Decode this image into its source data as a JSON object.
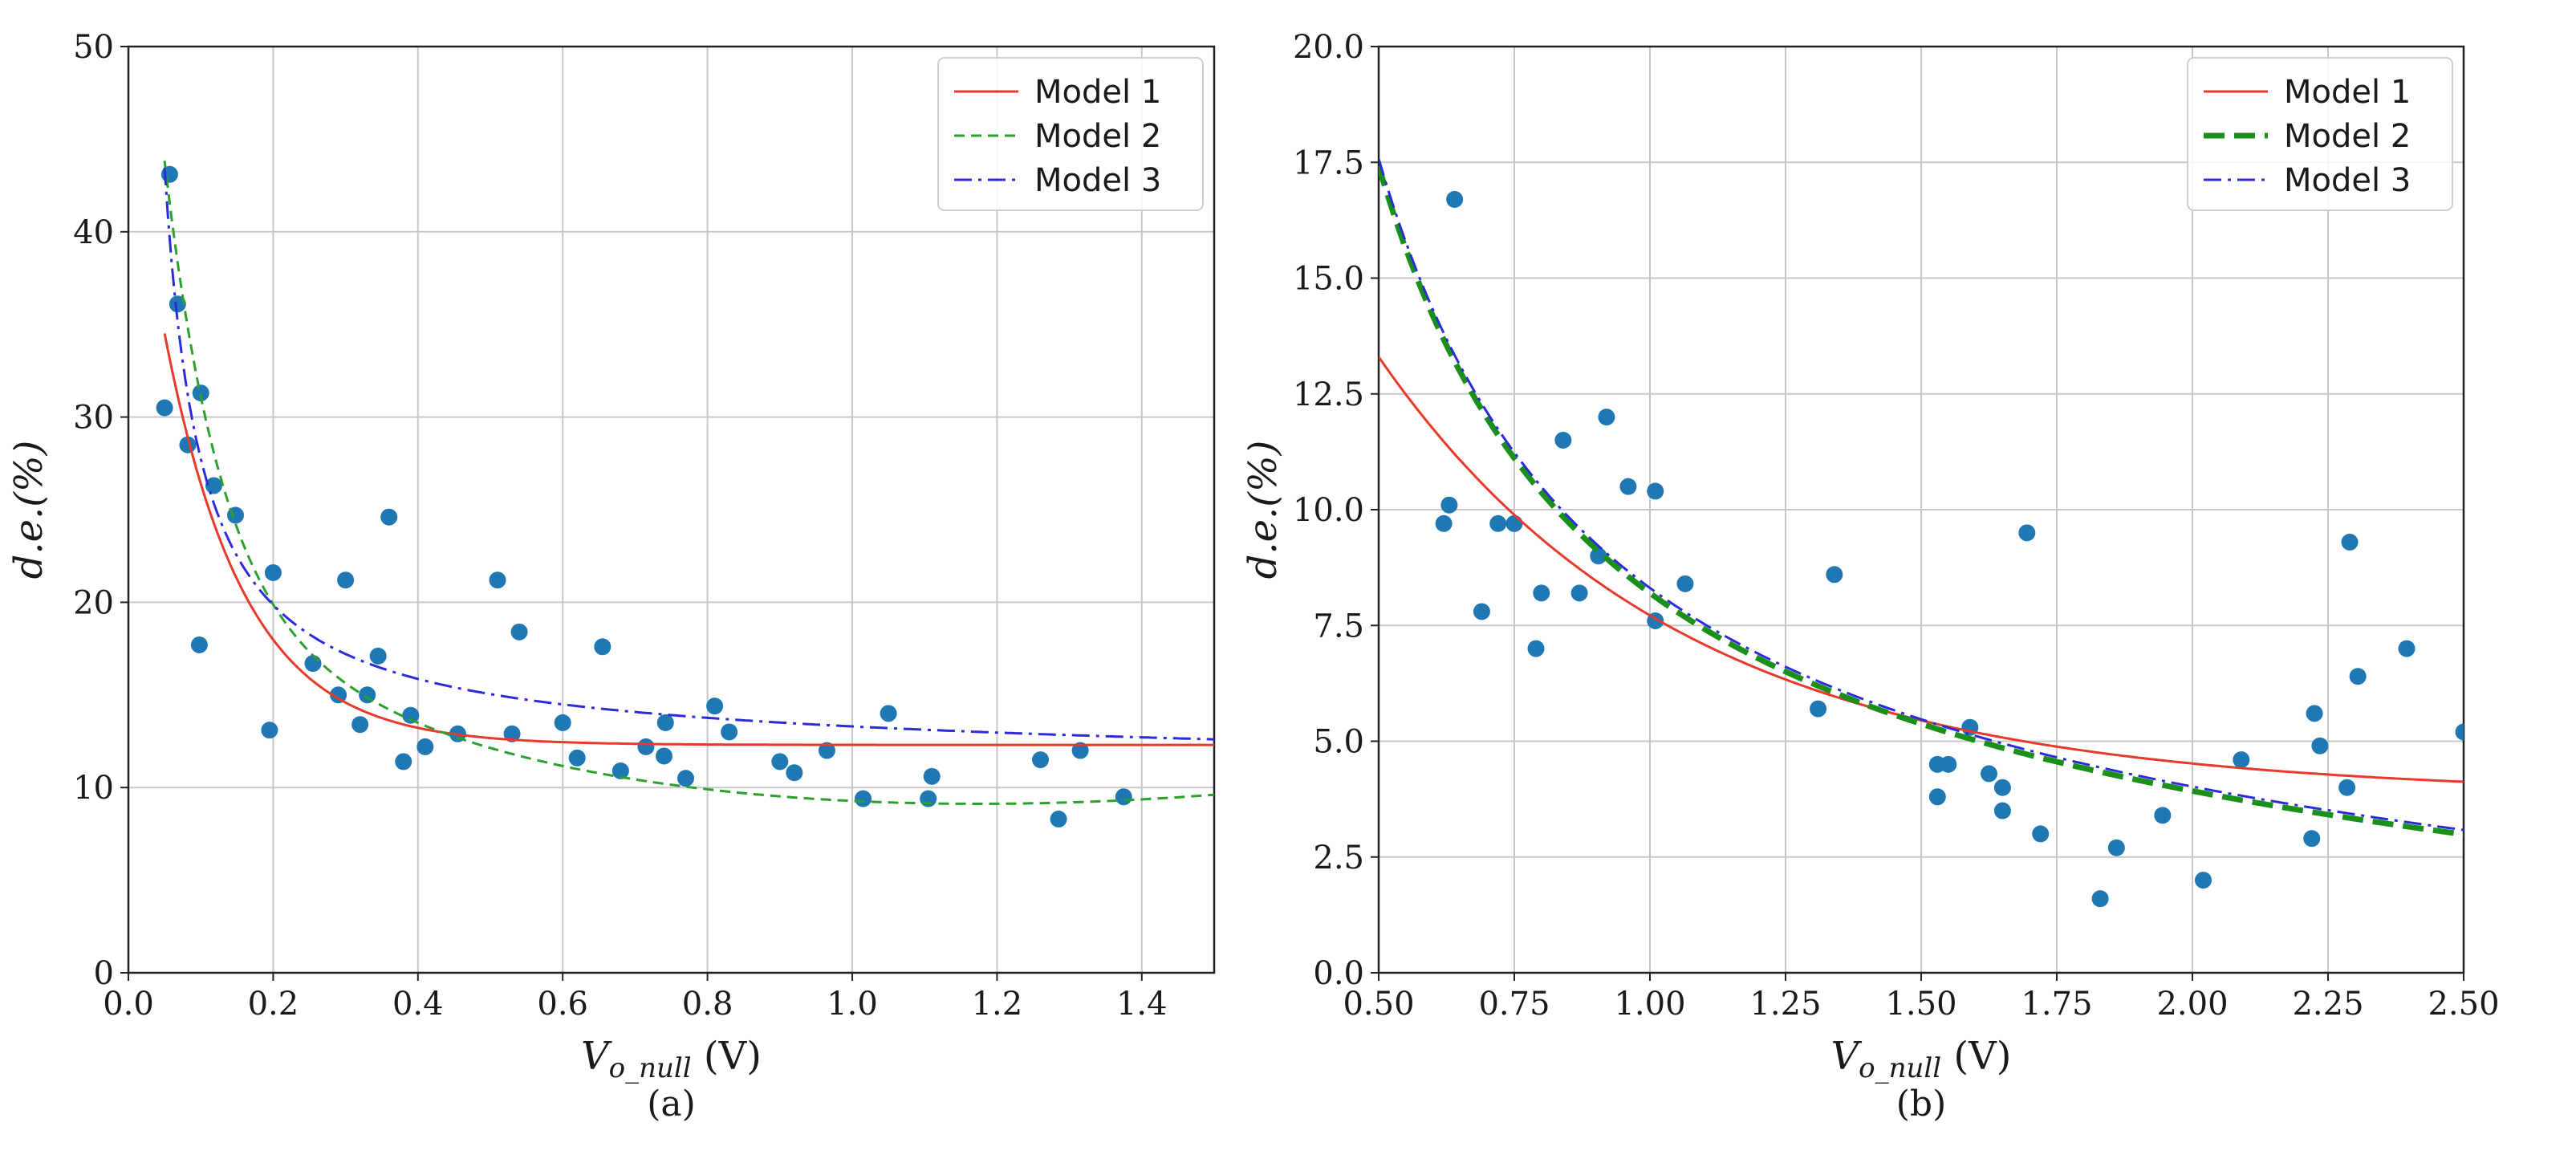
{
  "chart_data": [
    {
      "type": "scatter",
      "caption": "(a)",
      "xlabel": "V_{o_null} (V)",
      "ylabel": "d.e.(%)",
      "xlim": [
        0.0,
        1.5
      ],
      "ylim": [
        0,
        50
      ],
      "xticks": [
        "0.0",
        "0.2",
        "0.4",
        "0.6",
        "0.8",
        "1.0",
        "1.2",
        "1.4"
      ],
      "xtick_values": [
        0.0,
        0.2,
        0.4,
        0.6,
        0.8,
        1.0,
        1.2,
        1.4
      ],
      "yticks": [
        "0",
        "10",
        "20",
        "30",
        "40",
        "50"
      ],
      "ytick_values": [
        0,
        10,
        20,
        30,
        40,
        50
      ],
      "grid": true,
      "legend_position": "top-right",
      "points": {
        "color": "#1f77b4",
        "x": [
          0.05,
          0.057,
          0.068,
          0.082,
          0.1,
          0.098,
          0.118,
          0.148,
          0.195,
          0.2,
          0.255,
          0.29,
          0.3,
          0.32,
          0.33,
          0.345,
          0.36,
          0.38,
          0.39,
          0.41,
          0.455,
          0.51,
          0.53,
          0.54,
          0.6,
          0.62,
          0.655,
          0.68,
          0.715,
          0.74,
          0.742,
          0.77,
          0.81,
          0.83,
          0.9,
          0.92,
          0.965,
          1.015,
          1.05,
          1.105,
          1.11,
          1.26,
          1.285,
          1.315,
          1.375
        ],
        "y": [
          30.5,
          43.1,
          36.1,
          28.5,
          31.3,
          17.7,
          26.3,
          24.7,
          13.1,
          21.6,
          16.7,
          15.0,
          21.2,
          13.4,
          15.0,
          17.1,
          24.6,
          11.4,
          13.9,
          12.2,
          12.9,
          21.2,
          12.9,
          18.4,
          13.5,
          11.6,
          17.6,
          10.9,
          12.2,
          11.7,
          13.5,
          10.5,
          14.4,
          13.0,
          11.4,
          10.8,
          12.0,
          9.4,
          14.0,
          9.4,
          10.6,
          11.5,
          8.3,
          12.0,
          9.5
        ]
      },
      "series": [
        {
          "name": "Model 1",
          "color": "#e8392a",
          "dash": "solid",
          "width": 3,
          "fn": "m1a"
        },
        {
          "name": "Model 2",
          "color": "#2ca02c",
          "dash": "dashed",
          "width": 3,
          "fn": "m2a"
        },
        {
          "name": "Model 3",
          "color": "#2b2bd9",
          "dash": "dashdot",
          "width": 3,
          "fn": "m3a"
        }
      ]
    },
    {
      "type": "scatter",
      "caption": "(b)",
      "xlabel": "V_{o_null} (V)",
      "ylabel": "d.e.(%)",
      "xlim": [
        0.5,
        2.5
      ],
      "ylim": [
        0,
        20
      ],
      "xticks": [
        "0.50",
        "0.75",
        "1.00",
        "1.25",
        "1.50",
        "1.75",
        "2.00",
        "2.25",
        "2.50"
      ],
      "xtick_values": [
        0.5,
        0.75,
        1.0,
        1.25,
        1.5,
        1.75,
        2.0,
        2.25,
        2.5
      ],
      "yticks": [
        "0.0",
        "2.5",
        "5.0",
        "7.5",
        "10.0",
        "12.5",
        "15.0",
        "17.5",
        "20.0"
      ],
      "ytick_values": [
        0,
        2.5,
        5,
        7.5,
        10,
        12.5,
        15,
        17.5,
        20
      ],
      "grid": true,
      "legend_position": "top-right",
      "points": {
        "color": "#1f77b4",
        "x": [
          0.62,
          0.63,
          0.64,
          0.69,
          0.72,
          0.75,
          0.79,
          0.8,
          0.84,
          0.87,
          0.905,
          0.92,
          0.96,
          1.01,
          1.01,
          1.065,
          1.31,
          1.34,
          1.53,
          1.53,
          1.55,
          1.59,
          1.625,
          1.65,
          1.65,
          1.695,
          1.72,
          1.83,
          1.86,
          1.945,
          2.02,
          2.09,
          2.22,
          2.225,
          2.235,
          2.285,
          2.29,
          2.305,
          2.395,
          2.5
        ],
        "y": [
          9.7,
          10.1,
          16.7,
          7.8,
          9.7,
          9.7,
          7.0,
          8.2,
          11.5,
          8.2,
          9.0,
          12.0,
          10.5,
          10.4,
          7.6,
          8.4,
          5.7,
          8.6,
          4.5,
          3.8,
          4.5,
          5.3,
          4.3,
          4.0,
          3.5,
          9.5,
          3.0,
          1.6,
          2.7,
          3.4,
          2.0,
          4.6,
          2.9,
          5.6,
          4.9,
          4.0,
          9.3,
          6.4,
          7.0,
          5.2
        ]
      },
      "series": [
        {
          "name": "Model 1",
          "color": "#e8392a",
          "dash": "solid",
          "width": 3,
          "fn": "m1b"
        },
        {
          "name": "Model 2",
          "color": "#1a8f1a",
          "dash": "thickdash",
          "width": 7,
          "fn": "m2b"
        },
        {
          "name": "Model 3",
          "color": "#2b2bd9",
          "dash": "dashdot",
          "width": 3,
          "fn": "m3b"
        }
      ]
    }
  ]
}
